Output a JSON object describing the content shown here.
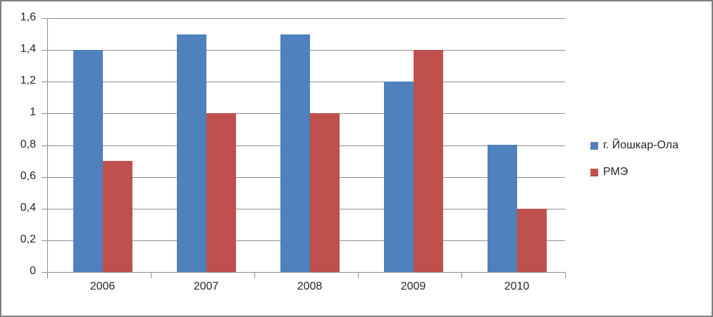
{
  "chart_data": {
    "type": "bar",
    "categories": [
      "2006",
      "2007",
      "2008",
      "2009",
      "2010"
    ],
    "series": [
      {
        "name": "г. Йошкар-Ола",
        "color": "#4f81bd",
        "values": [
          1.4,
          1.5,
          1.5,
          1.2,
          0.8
        ]
      },
      {
        "name": "РМЭ",
        "color": "#c0504d",
        "values": [
          0.7,
          1.0,
          1.0,
          1.4,
          0.4
        ]
      }
    ],
    "title": "",
    "xlabel": "",
    "ylabel": "",
    "ylim": [
      0,
      1.6
    ],
    "ytick_step": 0.2,
    "ytick_labels": [
      "0",
      "0,2",
      "0,4",
      "0,6",
      "0,8",
      "1",
      "1,2",
      "1,4",
      "1,6"
    ],
    "grid": true,
    "legend_position": "right",
    "colors": {
      "gridline": "#8c8c8c",
      "axis": "#8c8c8c",
      "label_text": "#262626",
      "frame_border": "#7f7f7f",
      "background": "#ffffff"
    }
  }
}
